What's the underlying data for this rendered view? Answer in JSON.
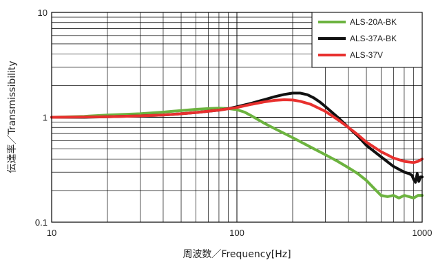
{
  "chart_data": {
    "type": "line",
    "xlabel": "周波数／Frequency[Hz]",
    "ylabel": "伝達率／Transmissibility",
    "x_scale": "log",
    "y_scale": "log",
    "xlim": [
      10,
      1000
    ],
    "ylim": [
      0.1,
      10
    ],
    "x_ticks": [
      {
        "value": 10,
        "label": "10"
      },
      {
        "value": 100,
        "label": "100"
      },
      {
        "value": 1000,
        "label": "1000"
      }
    ],
    "y_ticks": [
      {
        "value": 0.1,
        "label": "0.1"
      },
      {
        "value": 1,
        "label": "1"
      },
      {
        "value": 10,
        "label": "10"
      }
    ],
    "grid": true,
    "legend_position": "top-right",
    "series": [
      {
        "name": "ALS-20A-BK",
        "color": "#6cb33f",
        "points": [
          [
            10,
            1.0
          ],
          [
            15,
            1.02
          ],
          [
            20,
            1.05
          ],
          [
            30,
            1.08
          ],
          [
            40,
            1.12
          ],
          [
            50,
            1.16
          ],
          [
            60,
            1.19
          ],
          [
            70,
            1.21
          ],
          [
            80,
            1.22
          ],
          [
            90,
            1.21
          ],
          [
            100,
            1.18
          ],
          [
            110,
            1.12
          ],
          [
            120,
            1.03
          ],
          [
            140,
            0.88
          ],
          [
            160,
            0.78
          ],
          [
            200,
            0.64
          ],
          [
            250,
            0.52
          ],
          [
            300,
            0.44
          ],
          [
            350,
            0.38
          ],
          [
            400,
            0.33
          ],
          [
            450,
            0.29
          ],
          [
            500,
            0.25
          ],
          [
            550,
            0.21
          ],
          [
            600,
            0.18
          ],
          [
            650,
            0.175
          ],
          [
            700,
            0.18
          ],
          [
            750,
            0.17
          ],
          [
            800,
            0.18
          ],
          [
            850,
            0.175
          ],
          [
            900,
            0.17
          ],
          [
            950,
            0.18
          ],
          [
            1000,
            0.18
          ]
        ]
      },
      {
        "name": "ALS-37A-BK",
        "color": "#111111",
        "points": [
          [
            10,
            1.0
          ],
          [
            15,
            1.0
          ],
          [
            20,
            1.01
          ],
          [
            30,
            1.03
          ],
          [
            40,
            1.05
          ],
          [
            50,
            1.08
          ],
          [
            60,
            1.11
          ],
          [
            70,
            1.14
          ],
          [
            80,
            1.17
          ],
          [
            90,
            1.21
          ],
          [
            100,
            1.26
          ],
          [
            120,
            1.36
          ],
          [
            140,
            1.47
          ],
          [
            160,
            1.57
          ],
          [
            180,
            1.65
          ],
          [
            200,
            1.7
          ],
          [
            220,
            1.7
          ],
          [
            240,
            1.64
          ],
          [
            260,
            1.53
          ],
          [
            280,
            1.4
          ],
          [
            300,
            1.27
          ],
          [
            350,
            1.0
          ],
          [
            400,
            0.8
          ],
          [
            450,
            0.66
          ],
          [
            500,
            0.54
          ],
          [
            600,
            0.42
          ],
          [
            700,
            0.34
          ],
          [
            800,
            0.3
          ],
          [
            850,
            0.29
          ],
          [
            880,
            0.28
          ],
          [
            900,
            0.255
          ],
          [
            920,
            0.24
          ],
          [
            940,
            0.29
          ],
          [
            960,
            0.245
          ],
          [
            980,
            0.27
          ],
          [
            1000,
            0.27
          ]
        ]
      },
      {
        "name": "ALS-37V",
        "color": "#e8302e",
        "points": [
          [
            10,
            1.0
          ],
          [
            20,
            1.01
          ],
          [
            30,
            1.03
          ],
          [
            40,
            1.05
          ],
          [
            50,
            1.08
          ],
          [
            60,
            1.11
          ],
          [
            70,
            1.14
          ],
          [
            80,
            1.17
          ],
          [
            100,
            1.24
          ],
          [
            120,
            1.33
          ],
          [
            140,
            1.4
          ],
          [
            160,
            1.45
          ],
          [
            180,
            1.47
          ],
          [
            200,
            1.46
          ],
          [
            220,
            1.42
          ],
          [
            250,
            1.33
          ],
          [
            300,
            1.14
          ],
          [
            350,
            0.95
          ],
          [
            400,
            0.8
          ],
          [
            450,
            0.68
          ],
          [
            500,
            0.58
          ],
          [
            600,
            0.47
          ],
          [
            700,
            0.41
          ],
          [
            800,
            0.38
          ],
          [
            900,
            0.37
          ],
          [
            950,
            0.38
          ],
          [
            1000,
            0.4
          ]
        ]
      }
    ]
  }
}
